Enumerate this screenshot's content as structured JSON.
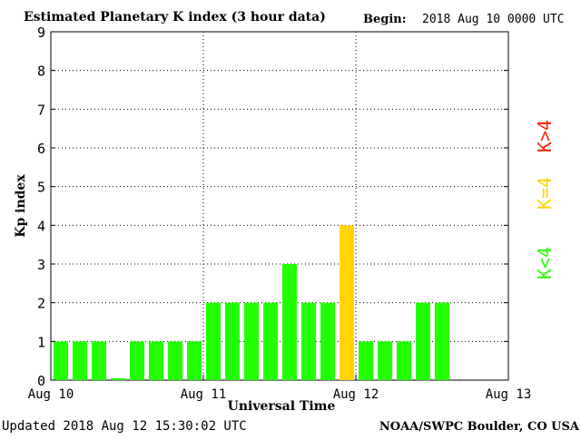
{
  "chart_data": {
    "type": "bar",
    "title": "Estimated Planetary K index (3 hour data)",
    "begin_label": "Begin:",
    "begin_value": "2018 Aug 10 0000 UTC",
    "xlabel": "Universal Time",
    "ylabel": "Kp index",
    "ylim": [
      0,
      9
    ],
    "yticks": [
      "0",
      "1",
      "2",
      "3",
      "4",
      "5",
      "6",
      "7",
      "8",
      "9"
    ],
    "xticks": [
      "Aug 10",
      "Aug 11",
      "Aug 12",
      "Aug 13"
    ],
    "bins_total": 24,
    "values": [
      1,
      1,
      1,
      0.05,
      1,
      1,
      1,
      1,
      2,
      2,
      2,
      2,
      3,
      2,
      2,
      4,
      1,
      1,
      1,
      2,
      2
    ],
    "grid": true,
    "legend": [
      {
        "label": "K>4",
        "color": "#ff2200"
      },
      {
        "label": "K=4",
        "color": "#ffd400"
      },
      {
        "label": "K<4",
        "color": "#22ff00"
      }
    ],
    "colors": {
      "low": "#22ff00",
      "equal": "#ffd400",
      "high": "#ff2200"
    }
  },
  "footer": {
    "updated": "Updated 2018 Aug 12 15:30:02 UTC",
    "source": "NOAA/SWPC Boulder, CO USA"
  }
}
